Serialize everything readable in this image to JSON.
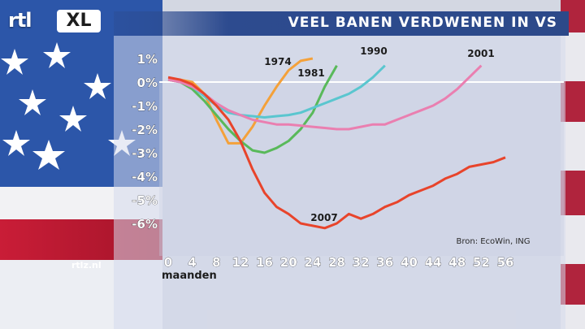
{
  "brand": {
    "rtl": "rtl",
    "xl": "XL"
  },
  "site": "rtlz.nl",
  "colors": {
    "title_bar": "#2c4989",
    "accent": "#e8442b"
  },
  "chart_data": {
    "type": "line",
    "title": "VEEL BANEN VERDWENEN IN VS",
    "xlabel": "maanden",
    "ylabel": "",
    "source": "Bron: EcoWin, ING",
    "xlim": [
      0,
      56
    ],
    "ylim": [
      -6.5,
      1
    ],
    "x_ticks": [
      "0",
      "4",
      "8",
      "12",
      "16",
      "20",
      "24",
      "28",
      "32",
      "36",
      "40",
      "44",
      "48",
      "52",
      "56"
    ],
    "y_ticks": [
      "1%",
      "0%",
      "-1%",
      "-2%",
      "-3%",
      "-4%",
      "-5%",
      "-6%"
    ],
    "y_tick_values": [
      1,
      0,
      -1,
      -2,
      -3,
      -4,
      -5,
      -6
    ],
    "grid": false,
    "series": [
      {
        "name": "1974",
        "color": "#f4a13a",
        "x": [
          0,
          2,
          4,
          6,
          8,
          10,
          12,
          14,
          16,
          18,
          20,
          22,
          24
        ],
        "y": [
          0.1,
          0.1,
          0.0,
          -0.5,
          -1.6,
          -2.6,
          -2.6,
          -1.9,
          -1.0,
          -0.2,
          0.5,
          0.9,
          1.0
        ]
      },
      {
        "name": "1981",
        "color": "#59b95a",
        "x": [
          0,
          2,
          4,
          6,
          8,
          10,
          12,
          14,
          16,
          18,
          20,
          22,
          24,
          26,
          28
        ],
        "y": [
          0.1,
          0.0,
          -0.3,
          -0.8,
          -1.4,
          -2.0,
          -2.5,
          -2.9,
          -3.0,
          -2.8,
          -2.5,
          -2.0,
          -1.3,
          -0.2,
          0.7
        ]
      },
      {
        "name": "1990",
        "color": "#5ac6cf",
        "x": [
          0,
          2,
          4,
          6,
          8,
          10,
          12,
          14,
          16,
          18,
          20,
          22,
          24,
          26,
          28,
          30,
          32,
          34,
          36
        ],
        "y": [
          0.1,
          0.0,
          -0.2,
          -0.6,
          -1.0,
          -1.3,
          -1.4,
          -1.45,
          -1.5,
          -1.45,
          -1.4,
          -1.3,
          -1.1,
          -0.9,
          -0.7,
          -0.5,
          -0.2,
          0.2,
          0.7
        ]
      },
      {
        "name": "2001",
        "color": "#ea7fb0",
        "x": [
          0,
          2,
          4,
          6,
          8,
          10,
          12,
          14,
          16,
          18,
          20,
          22,
          24,
          26,
          28,
          30,
          32,
          34,
          36,
          38,
          40,
          42,
          44,
          46,
          48,
          50,
          52
        ],
        "y": [
          0.1,
          0.0,
          -0.2,
          -0.5,
          -0.9,
          -1.2,
          -1.4,
          -1.6,
          -1.7,
          -1.8,
          -1.8,
          -1.85,
          -1.9,
          -1.95,
          -2.0,
          -2.0,
          -1.9,
          -1.8,
          -1.8,
          -1.6,
          -1.4,
          -1.2,
          -1.0,
          -0.7,
          -0.3,
          0.2,
          0.7
        ]
      },
      {
        "name": "2007",
        "color": "#e8442b",
        "x": [
          0,
          2,
          4,
          6,
          8,
          10,
          12,
          14,
          16,
          18,
          20,
          22,
          24,
          26,
          28,
          30,
          32,
          34,
          36,
          38,
          40,
          42,
          44,
          46,
          48,
          50,
          52,
          54,
          56
        ],
        "y": [
          0.2,
          0.1,
          -0.1,
          -0.5,
          -1.0,
          -1.6,
          -2.5,
          -3.7,
          -4.7,
          -5.3,
          -5.6,
          -6.0,
          -6.1,
          -6.2,
          -6.0,
          -5.6,
          -5.8,
          -5.6,
          -5.3,
          -5.1,
          -4.8,
          -4.6,
          -4.4,
          -4.1,
          -3.9,
          -3.6,
          -3.5,
          -3.4,
          -3.2
        ]
      }
    ]
  }
}
